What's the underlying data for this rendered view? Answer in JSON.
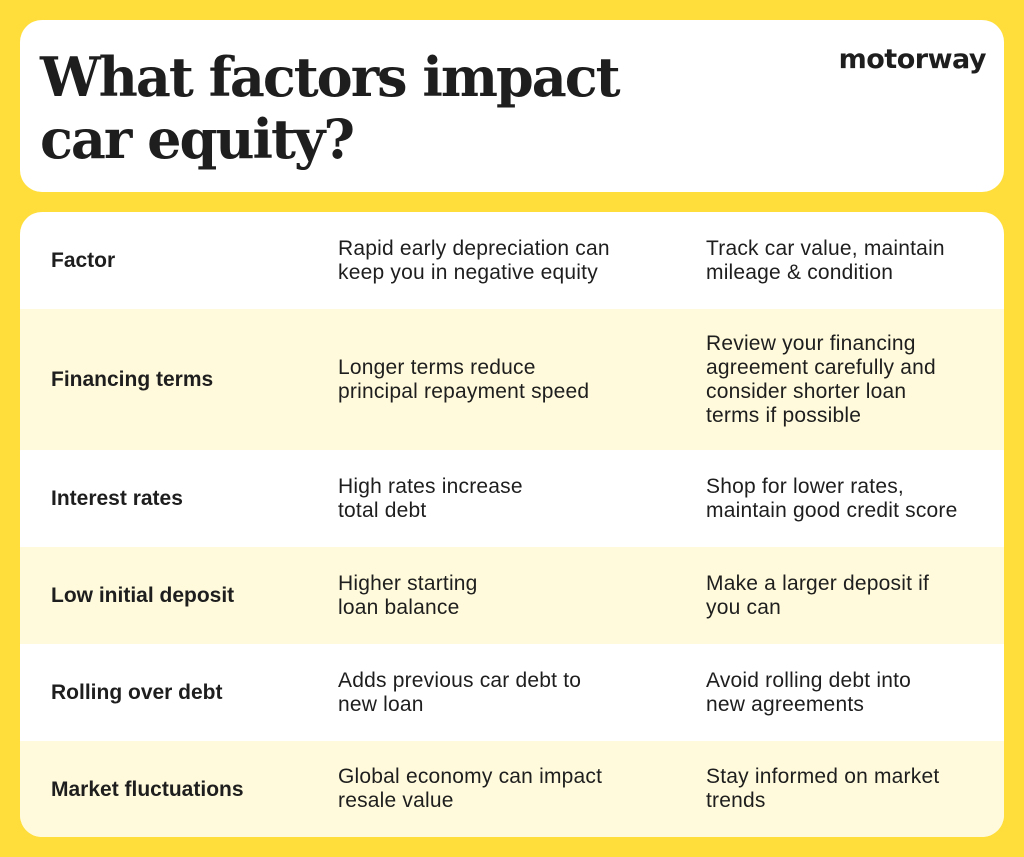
{
  "header": {
    "title_line1": "What factors impact",
    "title_line2": "car equity?",
    "logo_text": "motorway"
  },
  "colors": {
    "background": "#ffde3c",
    "card": "#ffffff",
    "shaded_row": "#fffadb",
    "text": "#1e1e1e"
  },
  "table": {
    "rows": [
      {
        "factor": "Factor",
        "impact": [
          "Rapid early depreciation can",
          "keep you in negative equity"
        ],
        "advice": [
          "Track car value, maintain",
          "mileage & condition"
        ]
      },
      {
        "factor": "Financing terms",
        "impact": [
          "Longer terms reduce",
          "principal repayment speed"
        ],
        "advice": [
          "Review your financing",
          "agreement carefully and",
          "consider shorter loan",
          "terms if possible"
        ]
      },
      {
        "factor": "Interest rates",
        "impact": [
          "High rates increase",
          "total debt"
        ],
        "advice": [
          "Shop for lower rates,",
          "maintain good credit score"
        ]
      },
      {
        "factor": "Low initial deposit",
        "impact": [
          "Higher starting",
          "loan balance"
        ],
        "advice": [
          "Make a larger deposit if",
          "you can"
        ]
      },
      {
        "factor": "Rolling over debt",
        "impact": [
          "Adds previous car debt to",
          "new loan"
        ],
        "advice": [
          "Avoid rolling debt into",
          "new agreements"
        ]
      },
      {
        "factor": "Market fluctuations",
        "impact": [
          "Global economy can impact",
          "resale value"
        ],
        "advice": [
          "Stay informed on market",
          "trends"
        ]
      }
    ]
  }
}
